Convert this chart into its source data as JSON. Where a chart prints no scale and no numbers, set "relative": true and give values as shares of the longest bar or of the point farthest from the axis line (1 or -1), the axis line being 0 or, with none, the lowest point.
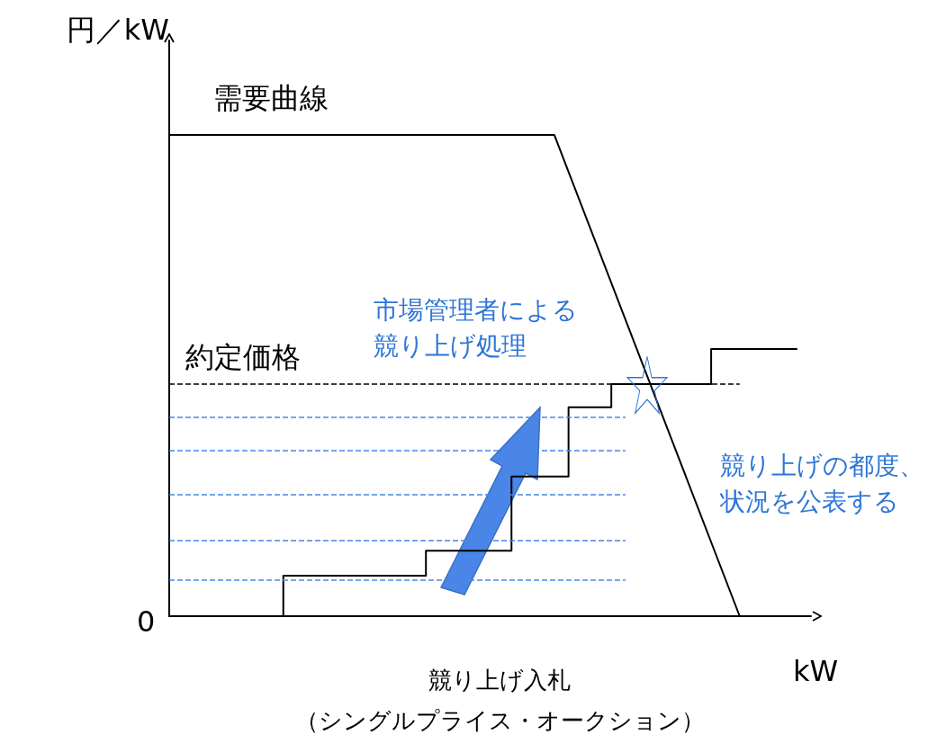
{
  "chart_data": {
    "type": "line",
    "relative": true,
    "ylabel": "円／kW",
    "xlabel": "kW",
    "grid": false,
    "legend": false,
    "marker": "none",
    "line_style": "solid",
    "categories": [
      null,
      null,
      null,
      null,
      null,
      null,
      null,
      null,
      null,
      null,
      null,
      null,
      null,
      null,
      null,
      null,
      null,
      null,
      null,
      null,
      null,
      null,
      null,
      null,
      null,
      null,
      null,
      null,
      null,
      null,
      null,
      null,
      null,
      null,
      null,
      null,
      null,
      null,
      null,
      null,
      null,
      null,
      null,
      null,
      null,
      null
    ],
    "series": [
      {
        "name": "需要曲線",
        "color": "#000000",
        "values": [
          1,
          null,
          null,
          null,
          null,
          null,
          null,
          null,
          null,
          null,
          null,
          null,
          null,
          null,
          null,
          null,
          null,
          null,
          null,
          null,
          null,
          null,
          null,
          null,
          null,
          null,
          null,
          1,
          null,
          null,
          null,
          null,
          null,
          null,
          null,
          null,
          null,
          null,
          null,
          null,
          0,
          null,
          null,
          null,
          null,
          null
        ]
      },
      {
        "type": "step",
        "color": "#000000",
        "values": [
          null,
          null,
          null,
          null,
          null,
          null,
          null,
          0,
          0.084,
          null,
          null,
          null,
          null,
          null,
          null,
          null,
          null,
          null,
          0.136,
          null,
          null,
          null,
          null,
          null,
          0.29,
          null,
          null,
          null,
          0.434,
          null,
          null,
          0.482,
          null,
          null,
          null,
          null,
          null,
          null,
          0.555,
          null,
          null,
          null,
          null,
          null,
          0.555,
          null
        ]
      }
    ],
    "ref_lines": [
      {
        "axis": "y",
        "value": 0.482,
        "label": "約定価格",
        "color": "#000000",
        "line_style": "dashed"
      },
      {
        "axis": "y",
        "value": 0.413,
        "color": "#4a86e8",
        "line_style": "dashed"
      },
      {
        "axis": "y",
        "value": 0.344,
        "color": "#4a86e8",
        "line_style": "dashed"
      },
      {
        "axis": "y",
        "value": 0.252,
        "color": "#4a86e8",
        "line_style": "dashed"
      },
      {
        "axis": "y",
        "value": 0.157,
        "color": "#4a86e8",
        "line_style": "dashed"
      },
      {
        "axis": "y",
        "value": 0.075,
        "color": "#4a86e8",
        "line_style": "dashed"
      }
    ],
    "annotations": [
      "0",
      "市場管理者による競り上げ処理",
      "競り上げの都度、状況を公表する",
      "競り上げ入札",
      "（シングルプライス・オークション）"
    ]
  }
}
